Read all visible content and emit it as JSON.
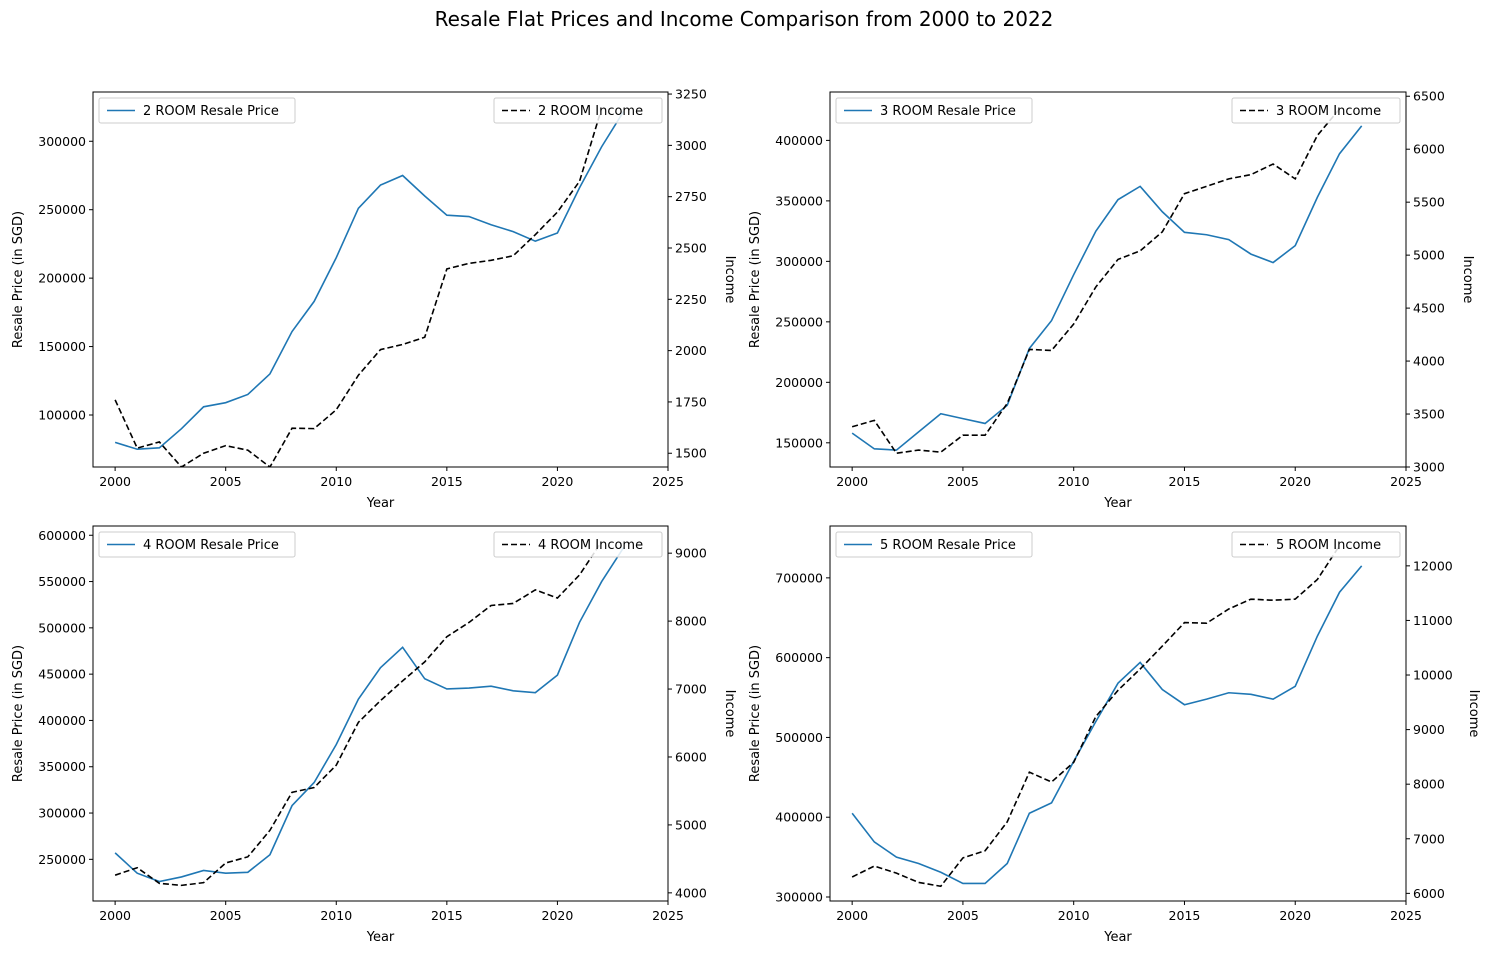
{
  "figure": {
    "title": "Resale Flat Prices and Income Comparison from 2000 to 2022"
  },
  "colors": {
    "price_line": "#1f77b4",
    "income_line": "#000000"
  },
  "chart_data": [
    {
      "type": "line",
      "xlabel": "Year",
      "ylabel": "Resale Price (in SGD)",
      "y2label": "Income",
      "xlim": [
        1999,
        2025
      ],
      "ylim": [
        62000,
        336000
      ],
      "y2lim": [
        1433,
        3260
      ],
      "xticks": [
        2000,
        2005,
        2010,
        2015,
        2020,
        2025
      ],
      "yticks": [
        100000,
        150000,
        200000,
        250000,
        300000
      ],
      "y2ticks": [
        1500,
        1750,
        2000,
        2250,
        2500,
        2750,
        3000,
        3250
      ],
      "legend_left_position": "upper left",
      "legend_right_position": "upper right",
      "series": [
        {
          "name": "2 ROOM Resale Price",
          "axis": "left",
          "style": "solid",
          "x": [
            2000,
            2001,
            2002,
            2003,
            2004,
            2005,
            2006,
            2007,
            2008,
            2009,
            2010,
            2011,
            2012,
            2013,
            2014,
            2015,
            2016,
            2017,
            2018,
            2019,
            2020,
            2021,
            2022,
            2023
          ],
          "values": [
            80000,
            75000,
            76000,
            90000,
            106000,
            109000,
            115000,
            130000,
            161000,
            183000,
            215000,
            251000,
            268000,
            275000,
            260000,
            246000,
            245000,
            239000,
            234000,
            227000,
            233000,
            266000,
            296000,
            322000
          ]
        },
        {
          "name": "2 ROOM Income",
          "axis": "right",
          "style": "dashed",
          "x": [
            2000,
            2001,
            2002,
            2003,
            2004,
            2005,
            2006,
            2007,
            2008,
            2009,
            2010,
            2011,
            2012,
            2013,
            2014,
            2015,
            2016,
            2017,
            2018,
            2019,
            2020,
            2021,
            2022
          ],
          "values": [
            1760,
            1525,
            1555,
            1433,
            1500,
            1537,
            1515,
            1433,
            1622,
            1620,
            1712,
            1880,
            2005,
            2030,
            2065,
            2398,
            2425,
            2440,
            2462,
            2565,
            2675,
            2825,
            3180
          ]
        }
      ]
    },
    {
      "type": "line",
      "xlabel": "Year",
      "ylabel": "Resale Price (in SGD)",
      "y2label": "Income",
      "xlim": [
        1999,
        2025
      ],
      "ylim": [
        130000,
        440000
      ],
      "y2lim": [
        3000,
        6540
      ],
      "xticks": [
        2000,
        2005,
        2010,
        2015,
        2020,
        2025
      ],
      "yticks": [
        150000,
        200000,
        250000,
        300000,
        350000,
        400000
      ],
      "y2ticks": [
        3000,
        3500,
        4000,
        4500,
        5000,
        5500,
        6000,
        6500
      ],
      "legend_left_position": "upper left",
      "legend_right_position": "upper right",
      "series": [
        {
          "name": "3 ROOM Resale Price",
          "axis": "left",
          "style": "solid",
          "x": [
            2000,
            2001,
            2002,
            2003,
            2004,
            2005,
            2006,
            2007,
            2008,
            2009,
            2010,
            2011,
            2012,
            2013,
            2014,
            2015,
            2016,
            2017,
            2018,
            2019,
            2020,
            2021,
            2022,
            2023
          ],
          "values": [
            158000,
            145000,
            144000,
            159000,
            174000,
            170000,
            166000,
            181000,
            228000,
            251000,
            289000,
            325000,
            351000,
            362000,
            341000,
            324000,
            322000,
            318000,
            306000,
            299000,
            313000,
            353000,
            389000,
            412000
          ]
        },
        {
          "name": "3 ROOM Income",
          "axis": "right",
          "style": "dashed",
          "x": [
            2000,
            2001,
            2002,
            2003,
            2004,
            2005,
            2006,
            2007,
            2008,
            2009,
            2010,
            2011,
            2012,
            2013,
            2014,
            2015,
            2016,
            2017,
            2018,
            2019,
            2020,
            2021,
            2022
          ],
          "values": [
            3380,
            3440,
            3130,
            3160,
            3140,
            3300,
            3300,
            3600,
            4110,
            4100,
            4350,
            4700,
            4960,
            5040,
            5220,
            5580,
            5650,
            5720,
            5760,
            5860,
            5720,
            6130,
            6380
          ]
        }
      ]
    },
    {
      "type": "line",
      "xlabel": "Year",
      "ylabel": "Resale Price (in SGD)",
      "y2label": "Income",
      "xlim": [
        1999,
        2025
      ],
      "ylim": [
        205000,
        610000
      ],
      "y2lim": [
        3880,
        9400
      ],
      "xticks": [
        2000,
        2005,
        2010,
        2015,
        2020,
        2025
      ],
      "yticks": [
        250000,
        300000,
        350000,
        400000,
        450000,
        500000,
        550000,
        600000
      ],
      "y2ticks": [
        4000,
        5000,
        6000,
        7000,
        8000,
        9000
      ],
      "legend_left_position": "upper left",
      "legend_right_position": "upper right",
      "series": [
        {
          "name": "4 ROOM Resale Price",
          "axis": "left",
          "style": "solid",
          "x": [
            2000,
            2001,
            2002,
            2003,
            2004,
            2005,
            2006,
            2007,
            2008,
            2009,
            2010,
            2011,
            2012,
            2013,
            2014,
            2015,
            2016,
            2017,
            2018,
            2019,
            2020,
            2021,
            2022,
            2023
          ],
          "values": [
            257000,
            235000,
            226000,
            231000,
            238000,
            235000,
            236000,
            255000,
            308000,
            333000,
            374000,
            423000,
            457000,
            479000,
            445000,
            434000,
            435000,
            437000,
            432000,
            430000,
            449000,
            506000,
            550000,
            587000
          ]
        },
        {
          "name": "4 ROOM Income",
          "axis": "right",
          "style": "dashed",
          "x": [
            2000,
            2001,
            2002,
            2003,
            2004,
            2005,
            2006,
            2007,
            2008,
            2009,
            2010,
            2011,
            2012,
            2013,
            2014,
            2015,
            2016,
            2017,
            2018,
            2019,
            2020,
            2021,
            2022
          ],
          "values": [
            4260,
            4370,
            4140,
            4110,
            4150,
            4440,
            4530,
            4920,
            5480,
            5550,
            5880,
            6510,
            6830,
            7120,
            7400,
            7770,
            7980,
            8230,
            8260,
            8460,
            8340,
            8680,
            9170
          ]
        }
      ]
    },
    {
      "type": "line",
      "xlabel": "Year",
      "ylabel": "Resale Price (in SGD)",
      "y2label": "Income",
      "xlim": [
        1999,
        2025
      ],
      "ylim": [
        295000,
        765000
      ],
      "y2lim": [
        5860,
        12730
      ],
      "xticks": [
        2000,
        2005,
        2010,
        2015,
        2020,
        2025
      ],
      "yticks": [
        300000,
        400000,
        500000,
        600000,
        700000
      ],
      "y2ticks": [
        6000,
        7000,
        8000,
        9000,
        10000,
        11000,
        12000
      ],
      "legend_left_position": "upper left",
      "legend_right_position": "upper right",
      "series": [
        {
          "name": "5 ROOM Resale Price",
          "axis": "left",
          "style": "solid",
          "x": [
            2000,
            2001,
            2002,
            2003,
            2004,
            2005,
            2006,
            2007,
            2008,
            2009,
            2010,
            2011,
            2012,
            2013,
            2014,
            2015,
            2016,
            2017,
            2018,
            2019,
            2020,
            2021,
            2022,
            2023
          ],
          "values": [
            405000,
            369000,
            350000,
            342000,
            331000,
            317000,
            317000,
            342000,
            405000,
            418000,
            470000,
            520000,
            568000,
            594000,
            560000,
            541000,
            548000,
            556000,
            554000,
            548000,
            564000,
            627000,
            682000,
            715000
          ]
        },
        {
          "name": "5 ROOM Income",
          "axis": "right",
          "style": "dashed",
          "x": [
            2000,
            2001,
            2002,
            2003,
            2004,
            2005,
            2006,
            2007,
            2008,
            2009,
            2010,
            2011,
            2012,
            2013,
            2014,
            2015,
            2016,
            2017,
            2018,
            2019,
            2020,
            2021,
            2022
          ],
          "values": [
            6300,
            6500,
            6370,
            6200,
            6130,
            6650,
            6780,
            7310,
            8220,
            8040,
            8400,
            9240,
            9720,
            10110,
            10530,
            10960,
            10950,
            11210,
            11390,
            11370,
            11390,
            11750,
            12370
          ]
        }
      ]
    }
  ]
}
